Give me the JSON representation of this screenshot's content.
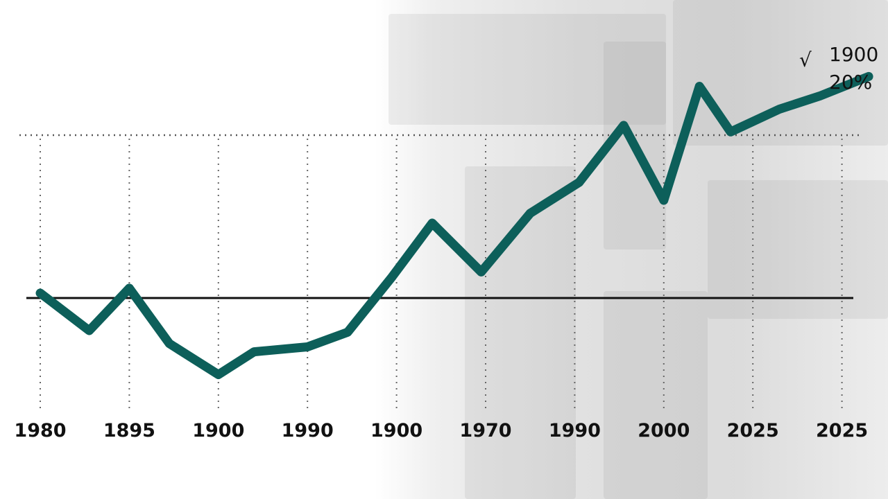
{
  "chart_data": {
    "type": "line",
    "title": "",
    "xlabel": "",
    "ylabel": "",
    "x_tick_labels": [
      "1980",
      "1895",
      "1900",
      "1990",
      "1900",
      "1970",
      "1990",
      "2000",
      "2025",
      "2025"
    ],
    "series": [
      {
        "color": "#0d5f5a",
        "x": [
          0,
          0.55,
          1,
          1.45,
          2,
          2.4,
          3,
          3.45,
          3.95,
          4.4,
          4.95,
          5.5,
          6.05,
          6.55,
          7.0,
          7.4,
          7.75,
          8.3,
          8.75,
          9.3
        ],
        "values": [
          0.3,
          -2.0,
          0.6,
          -2.8,
          -4.7,
          -3.3,
          -3.0,
          -2.1,
          1.3,
          4.6,
          1.6,
          5.2,
          7.1,
          10.6,
          6.0,
          13.0,
          10.2,
          11.6,
          12.4,
          13.6
        ]
      }
    ],
    "reference_line_y": 0,
    "upper_dotted_line_y": 10.0,
    "grid": "vertical dotted lines at each x tick",
    "annotation": {
      "check_mark": "√",
      "line1": "1900",
      "line2": "20%"
    }
  },
  "colors": {
    "line": "#0d5f5a",
    "axis": "#111111",
    "grid": "#666666"
  }
}
